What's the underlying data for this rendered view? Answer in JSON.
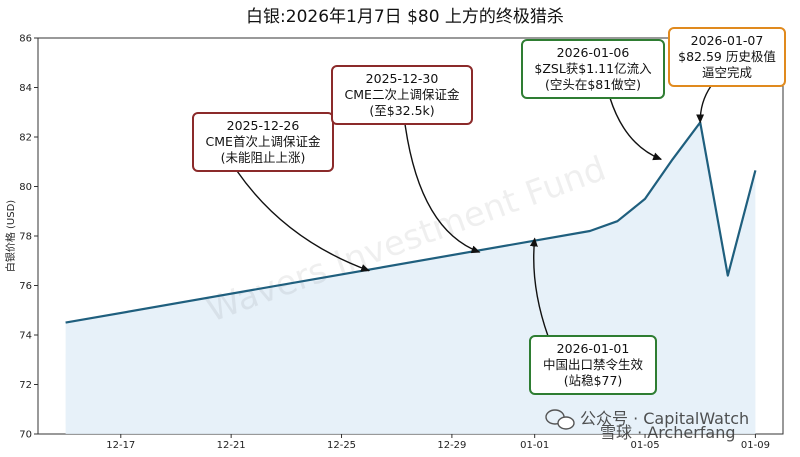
{
  "chart_data": {
    "type": "line",
    "title": "白银:2026年1月7日 $80 上方的终极猎杀",
    "ylabel": "白银价格 (USD)",
    "ylim": [
      70,
      86
    ],
    "yticks": [
      70,
      72,
      74,
      76,
      78,
      80,
      82,
      84,
      86
    ],
    "xlim": [
      "2025-12-14",
      "2026-01-10"
    ],
    "xticks": [
      {
        "date": "2025-12-17",
        "label": "12-17"
      },
      {
        "date": "2025-12-21",
        "label": "12-21"
      },
      {
        "date": "2025-12-25",
        "label": "12-25"
      },
      {
        "date": "2025-12-29",
        "label": "12-29"
      },
      {
        "date": "2026-01-01",
        "label": "01-01"
      },
      {
        "date": "2026-01-05",
        "label": "01-05"
      },
      {
        "date": "2026-01-09",
        "label": "01-09"
      }
    ],
    "series": [
      {
        "x": [
          "2025-12-15",
          "2026-01-03",
          "2026-01-04",
          "2026-01-05",
          "2026-01-06",
          "2026-01-07",
          "2026-01-08",
          "2026-01-09"
        ],
        "y": [
          74.5,
          78.2,
          78.6,
          79.5,
          81.1,
          82.59,
          76.4,
          80.65
        ],
        "color": "#1f5f7e",
        "fill": "#e3eef8"
      }
    ],
    "grid": false,
    "annotations": [
      {
        "lines": [
          "2025-12-26",
          "CME首次上调保证金",
          "(未能阻止上涨)"
        ],
        "point": {
          "date": "2025-12-26",
          "y": 76.6
        },
        "border": "#8b2a2a"
      },
      {
        "lines": [
          "2025-12-30",
          "CME二次上调保证金",
          "(至$32.5k)"
        ],
        "point": {
          "date": "2025-12-30",
          "y": 77.35
        },
        "border": "#8b2a2a"
      },
      {
        "lines": [
          "2026-01-06",
          "$ZSL获$1.11亿流入",
          "(空头在$81做空)"
        ],
        "point": {
          "date": "2026-01-05 14:00",
          "y": 81.1
        },
        "border": "#2e7d32"
      },
      {
        "lines": [
          "2026-01-07",
          "$82.59 历史极值",
          "逼空完成"
        ],
        "point": {
          "date": "2026-01-07",
          "y": 82.59
        },
        "border": "#e08a1e"
      },
      {
        "lines": [
          "2026-01-01",
          "中国出口禁令生效",
          "(站稳$77)"
        ],
        "point": {
          "date": "2026-01-01",
          "y": 77.9
        },
        "border": "#2e7d32"
      }
    ]
  },
  "watermark": "Wavers Investment Fund",
  "brand": {
    "label": "公众号 · CapitalWatch",
    "overlay": "雪球 · Archerfang"
  }
}
